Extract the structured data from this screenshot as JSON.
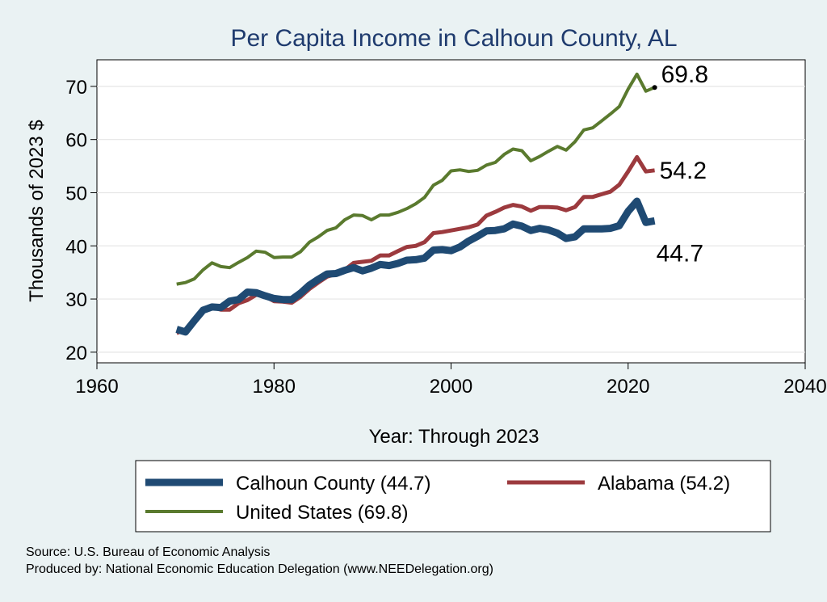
{
  "chart_data": {
    "type": "line",
    "title": "Per Capita Income in Calhoun County, AL",
    "xlabel": "Year: Through 2023",
    "ylabel": "Thousands of 2023 $",
    "xlim": [
      1960,
      2040
    ],
    "ylim": [
      18,
      75
    ],
    "xticks": [
      1960,
      1980,
      2000,
      2020,
      2040
    ],
    "yticks": [
      20,
      30,
      40,
      50,
      60,
      70
    ],
    "grid": "horizontal",
    "legend_position": "bottom",
    "series": [
      {
        "name": "United States (69.8)",
        "color": "#5a7a2e",
        "width": 4,
        "end_label": "69.8",
        "x": [
          1969,
          1970,
          1971,
          1972,
          1973,
          1974,
          1975,
          1976,
          1977,
          1978,
          1979,
          1980,
          1981,
          1982,
          1983,
          1984,
          1985,
          1986,
          1987,
          1988,
          1989,
          1990,
          1991,
          1992,
          1993,
          1994,
          1995,
          1996,
          1997,
          1998,
          1999,
          2000,
          2001,
          2002,
          2003,
          2004,
          2005,
          2006,
          2007,
          2008,
          2009,
          2010,
          2011,
          2012,
          2013,
          2014,
          2015,
          2016,
          2017,
          2018,
          2019,
          2020,
          2021,
          2022,
          2023
        ],
        "values": [
          32.8,
          33.1,
          33.8,
          35.5,
          36.8,
          36.1,
          35.9,
          36.9,
          37.8,
          39.0,
          38.8,
          37.8,
          37.9,
          37.9,
          38.9,
          40.7,
          41.7,
          42.9,
          43.4,
          44.9,
          45.8,
          45.7,
          44.9,
          45.8,
          45.8,
          46.3,
          47.0,
          47.9,
          49.1,
          51.4,
          52.3,
          54.1,
          54.3,
          54.0,
          54.2,
          55.2,
          55.7,
          57.2,
          58.2,
          57.9,
          56.0,
          56.8,
          57.8,
          58.7,
          58.0,
          59.6,
          61.8,
          62.2,
          63.5,
          64.8,
          66.2,
          69.5,
          72.3,
          69.1,
          69.8
        ]
      },
      {
        "name": "Alabama (54.2)",
        "color": "#9c3a3e",
        "width": 5,
        "end_label": "54.2",
        "x": [
          1969,
          1970,
          1971,
          1972,
          1973,
          1974,
          1975,
          1976,
          1977,
          1978,
          1979,
          1980,
          1981,
          1982,
          1983,
          1984,
          1985,
          1986,
          1987,
          1988,
          1989,
          1990,
          1991,
          1992,
          1993,
          1994,
          1995,
          1996,
          1997,
          1998,
          1999,
          2000,
          2001,
          2002,
          2003,
          2004,
          2005,
          2006,
          2007,
          2008,
          2009,
          2010,
          2011,
          2012,
          2013,
          2014,
          2015,
          2016,
          2017,
          2018,
          2019,
          2020,
          2021,
          2022,
          2023
        ],
        "values": [
          23.6,
          24.3,
          26.0,
          27.6,
          28.4,
          28.0,
          28.0,
          29.2,
          29.8,
          30.8,
          30.5,
          29.6,
          29.5,
          29.3,
          30.4,
          31.9,
          33.1,
          34.2,
          34.7,
          35.5,
          36.8,
          37.0,
          37.2,
          38.2,
          38.2,
          39.0,
          39.8,
          40.0,
          40.7,
          42.4,
          42.6,
          42.9,
          43.2,
          43.5,
          44.0,
          45.7,
          46.4,
          47.2,
          47.7,
          47.4,
          46.6,
          47.3,
          47.3,
          47.2,
          46.7,
          47.3,
          49.2,
          49.2,
          49.7,
          50.2,
          51.5,
          54.0,
          56.7,
          54.0,
          54.2
        ]
      },
      {
        "name": "Calhoun County (44.7)",
        "color": "#1f4a73",
        "width": 9,
        "end_label": "44.7",
        "x": [
          1969,
          1970,
          1971,
          1972,
          1973,
          1974,
          1975,
          1976,
          1977,
          1978,
          1979,
          1980,
          1981,
          1982,
          1983,
          1984,
          1985,
          1986,
          1987,
          1988,
          1989,
          1990,
          1991,
          1992,
          1993,
          1994,
          1995,
          1996,
          1997,
          1998,
          1999,
          2000,
          2001,
          2002,
          2003,
          2004,
          2005,
          2006,
          2007,
          2008,
          2009,
          2010,
          2011,
          2012,
          2013,
          2014,
          2015,
          2016,
          2017,
          2018,
          2019,
          2020,
          2021,
          2022,
          2023
        ],
        "values": [
          24.3,
          23.8,
          25.9,
          27.9,
          28.5,
          28.4,
          29.6,
          29.9,
          31.3,
          31.2,
          30.6,
          30.1,
          29.9,
          29.9,
          31.1,
          32.6,
          33.7,
          34.7,
          34.8,
          35.4,
          35.9,
          35.3,
          35.8,
          36.5,
          36.3,
          36.7,
          37.3,
          37.4,
          37.7,
          39.2,
          39.3,
          39.1,
          39.8,
          40.9,
          41.8,
          42.8,
          42.9,
          43.2,
          44.1,
          43.7,
          42.9,
          43.3,
          43.0,
          42.4,
          41.4,
          41.7,
          43.2,
          43.2,
          43.2,
          43.3,
          43.8,
          46.5,
          48.4,
          44.4,
          44.7
        ]
      }
    ],
    "legend": [
      {
        "label": "Calhoun County (44.7)",
        "color": "#1f4a73",
        "width": 9
      },
      {
        "label": "Alabama (54.2)",
        "color": "#9c3a3e",
        "width": 5
      },
      {
        "label": "United States (69.8)",
        "color": "#5a7a2e",
        "width": 4
      }
    ]
  },
  "footer": {
    "source": "Source: U.S. Bureau of Economic Analysis",
    "produced_by": "Produced by: National Economic Education Delegation (www.NEEDelegation.org)"
  }
}
